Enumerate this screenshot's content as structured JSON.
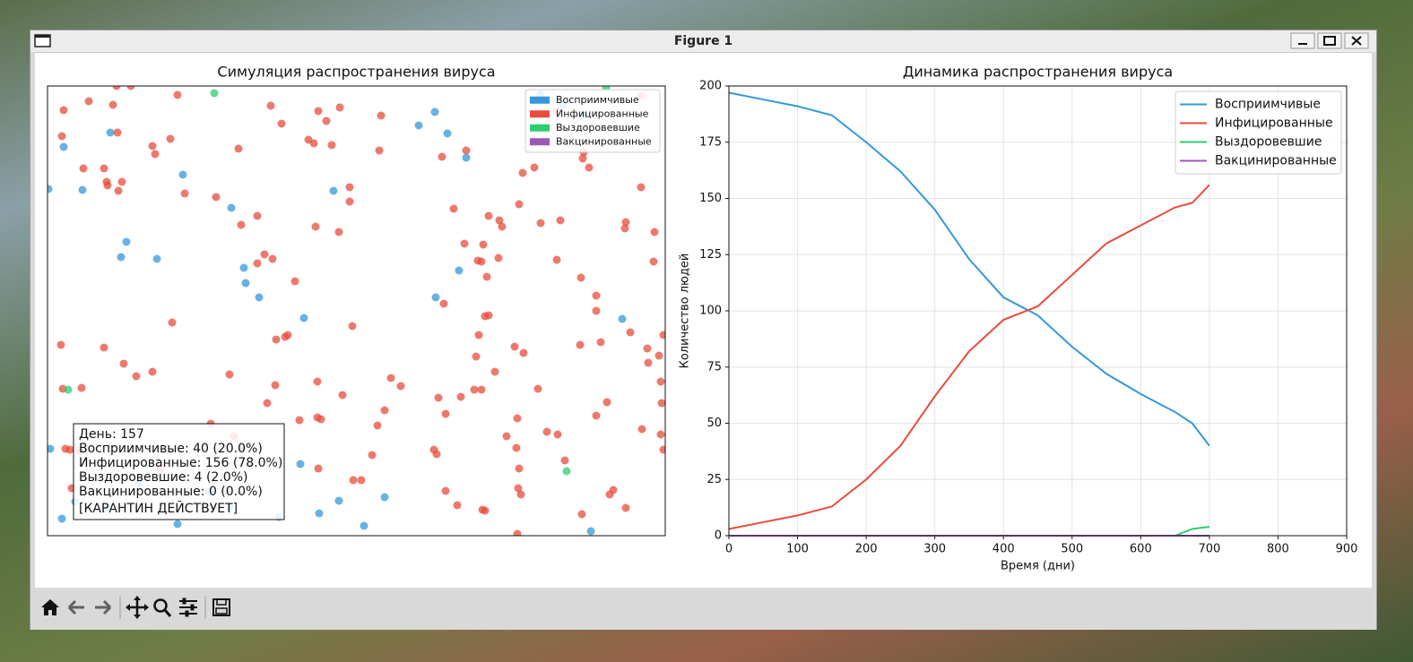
{
  "window": {
    "title": "Figure 1"
  },
  "chart_data": [
    {
      "type": "scatter",
      "title": "Симуляция распространения вируса",
      "xlim": [
        0,
        689
      ],
      "ylim": [
        0,
        502
      ],
      "legend": "upper right",
      "annotations": [
        "День: 157",
        "Восприимчивые: 40 (20.0%)",
        "Инфицированные: 156 (78.0%)",
        "Выздоровевшие: 4 (2.0%)",
        "Вакцинированные: 0 (0.0%)",
        "[КАРАНТИН ДЕЙСТВУЕТ]"
      ],
      "series": [
        {
          "name": "Восприимчивые",
          "color": "#3498db",
          "x": [
            18,
            70,
            39,
            1,
            151,
            88,
            82,
            122,
            205,
            219,
            221,
            236,
            286,
            319,
            414,
            432,
            446,
            467,
            459,
            433,
            641,
            598,
            575,
            550,
            3,
            16,
            145,
            282,
            303,
            325,
            353,
            376,
            258,
            606,
            180,
            203,
            217,
            31,
            102,
            65
          ],
          "y": [
            434,
            450,
            386,
            387,
            403,
            328,
            311,
            309,
            366,
            299,
            282,
            266,
            243,
            385,
            458,
            473,
            449,
            422,
            296,
            266,
            242,
            469,
            481,
            493,
            97,
            19,
            13,
            80,
            25,
            39,
            11,
            43,
            21,
            5,
            49,
            32,
            98,
            38,
            58,
            30
          ]
        },
        {
          "name": "Инфицированные",
          "color": "#e74c3c",
          "x": [
            18,
            46,
            73,
            93,
            145,
            16,
            40,
            63,
            66,
            67,
            83,
            79,
            78,
            117,
            120,
            137,
            153,
            188,
            213,
            249,
            261,
            291,
            297,
            302,
            311,
            326,
            317,
            370,
            337,
            337,
            299,
            325,
            234,
            216,
            242,
            251,
            234,
            276,
            139,
            15,
            63,
            85,
            99,
            117,
            203,
            255,
            265,
            268,
            340,
            17,
            38,
            245,
            254,
            301,
            329,
            383,
            394,
            376,
            368,
            281,
            301,
            305,
            182,
            208,
            20,
            25,
            35,
            27,
            126,
            302,
            341,
            350,
            362,
            431,
            434,
            444,
            436,
            461,
            476,
            484,
            499,
            478,
            481,
            488,
            492,
            442,
            521,
            531,
            547,
            557,
            524,
            512,
            523,
            569,
            577,
            526,
            525,
            528,
            444,
            457,
            485,
            488,
            524,
            596,
            627,
            631,
            645,
            612,
            624,
            663,
            684,
            685,
            684,
            687,
            682,
            669,
            670,
            650,
            687,
            594,
            617,
            612,
            612,
            595,
            568,
            503,
            484,
            490,
            480,
            465,
            486,
            492,
            504,
            507,
            526,
            550,
            572,
            645,
            644,
            677,
            676,
            662,
            530,
            543,
            598,
            597,
            604,
            567,
            440,
            467,
            453,
            372,
            77,
            662
          ],
          "y": [
            475,
            485,
            481,
            502,
            492,
            446,
            410,
            410,
            395,
            391,
            395,
            385,
            450,
            435,
            426,
            443,
            382,
            378,
            432,
            480,
            460,
            442,
            438,
            474,
            463,
            478,
            436,
            430,
            389,
            373,
            345,
            339,
            357,
            347,
            314,
            309,
            304,
            284,
            238,
            213,
            210,
            192,
            178,
            183,
            180,
            219,
            222,
            224,
            234,
            164,
            165,
            148,
            168,
            172,
            157,
            176,
            167,
            140,
            123,
            129,
            132,
            130,
            125,
            111,
            97,
            96,
            95,
            53,
            74,
            75,
            62,
            62,
            90,
            96,
            91,
            136,
            154,
            155,
            163,
            163,
            183,
            200,
            224,
            245,
            246,
            259,
            211,
            204,
            164,
            116,
            131,
            111,
            98,
            113,
            84,
            75,
            53,
            46,
            50,
            34,
            29,
            28,
            2,
            24,
            46,
            51,
            31,
            134,
            149,
            119,
            172,
            148,
            113,
            96,
            201,
            209,
            193,
            227,
            224,
            213,
            216,
            268,
            251,
            288,
            308,
            310,
            306,
            289,
            307,
            326,
            325,
            357,
            352,
            345,
            370,
            349,
            352,
            350,
            343,
            339,
            306,
            389,
            405,
            411,
            428,
            421,
            411,
            474,
            423,
            430,
            365,
            469,
            502,
            491
          ]
        },
        {
          "name": "Выздоровевшие",
          "color": "#2ecc71",
          "x": [
            186,
            23,
            579,
            623
          ],
          "y": [
            494,
            163,
            72,
            500
          ]
        },
        {
          "name": "Вакцинированные",
          "color": "#9b59b6",
          "x": [],
          "y": []
        }
      ]
    },
    {
      "type": "line",
      "title": "Динамика распространения вируса",
      "xlabel": "Время (дни)",
      "ylabel": "Количество людей",
      "x": [
        0,
        50,
        100,
        150,
        200,
        250,
        300,
        350,
        400,
        450,
        500,
        550,
        600,
        650,
        675,
        700
      ],
      "xlim": [
        0,
        900
      ],
      "ylim": [
        0,
        200
      ],
      "xticks": [
        0,
        100,
        200,
        300,
        400,
        500,
        600,
        700,
        800,
        900
      ],
      "yticks": [
        0,
        25,
        50,
        75,
        100,
        125,
        150,
        175,
        200
      ],
      "grid": true,
      "legend": "upper right",
      "series": [
        {
          "name": "Восприимчивые",
          "color": "#3498db",
          "values": [
            197,
            194,
            191,
            187,
            175,
            162,
            145,
            123,
            106,
            98,
            84,
            72,
            63,
            55,
            50,
            40
          ]
        },
        {
          "name": "Инфицированные",
          "color": "#e74c3c",
          "values": [
            3,
            6,
            9,
            13,
            25,
            40,
            62,
            82,
            96,
            102,
            116,
            130,
            138,
            146,
            148,
            156
          ]
        },
        {
          "name": "Выздоровевшие",
          "color": "#2ecc71",
          "values": [
            0,
            0,
            0,
            0,
            0,
            0,
            0,
            0,
            0,
            0,
            0,
            0,
            0,
            0,
            3,
            4
          ]
        },
        {
          "name": "Вакцинированные",
          "color": "#9b59b6",
          "values": [
            0,
            0,
            0,
            0,
            0,
            0,
            0,
            0,
            0,
            0,
            0,
            0,
            0,
            0,
            0,
            0
          ]
        }
      ]
    }
  ]
}
